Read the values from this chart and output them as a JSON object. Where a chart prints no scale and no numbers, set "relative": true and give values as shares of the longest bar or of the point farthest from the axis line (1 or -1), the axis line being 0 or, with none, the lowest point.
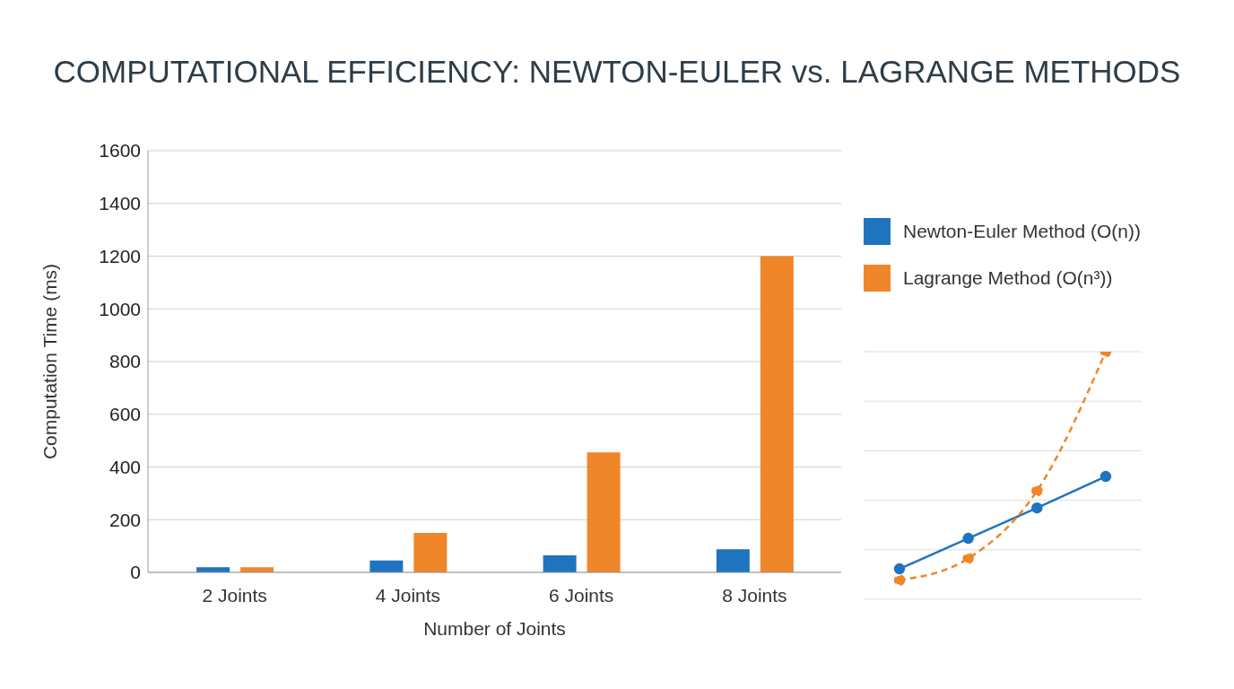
{
  "chart_data": [
    {
      "type": "bar",
      "title": "COMPUTATIONAL EFFICIENCY: NEWTON-EULER vs. LAGRANGE METHODS",
      "xlabel": "Number of Joints",
      "ylabel": "Computation Time (ms)",
      "categories": [
        "2 Joints",
        "4 Joints",
        "6 Joints",
        "8 Joints"
      ],
      "series": [
        {
          "name": "Newton-Euler Method (O(n))",
          "color": "#1f74bf",
          "values": [
            20,
            45,
            65,
            88
          ]
        },
        {
          "name": "Lagrange Method (O(n³))",
          "color": "#f0862a",
          "values": [
            20,
            150,
            455,
            1200
          ]
        }
      ],
      "ylim": [
        0,
        1600
      ],
      "yticks": [
        0,
        200,
        400,
        600,
        800,
        1000,
        1200,
        1400,
        1600
      ],
      "grid": "y",
      "legend": "right"
    },
    {
      "type": "line",
      "relative": true,
      "categories": [
        null,
        null,
        null,
        null
      ],
      "grid": "y",
      "marker": "circle",
      "series": [
        {
          "color": "#1f74bf",
          "values": [
            0.123,
            0.246,
            0.369,
            0.496
          ],
          "line_style": "solid"
        },
        {
          "color": "#f0862a",
          "values": [
            0.077,
            0.165,
            0.438,
            1
          ],
          "line_style": "dashed"
        }
      ]
    }
  ]
}
